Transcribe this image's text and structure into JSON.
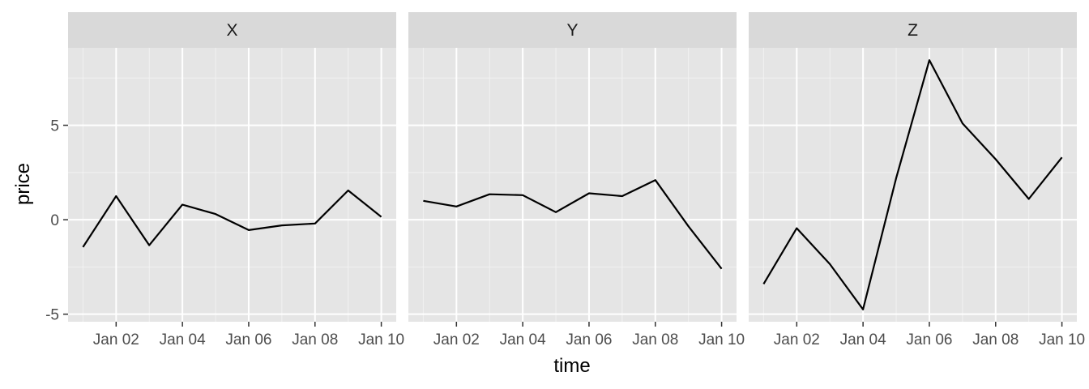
{
  "chart_data": {
    "type": "line",
    "facet_by": "series",
    "xlabel": "time",
    "ylabel": "price",
    "x": [
      "2000-01-01",
      "2000-01-02",
      "2000-01-03",
      "2000-01-04",
      "2000-01-05",
      "2000-01-06",
      "2000-01-07",
      "2000-01-08",
      "2000-01-09",
      "2000-01-10"
    ],
    "x_tick_values": [
      "2000-01-02",
      "2000-01-04",
      "2000-01-06",
      "2000-01-08",
      "2000-01-10"
    ],
    "x_tick_labels": [
      "Jan 02",
      "Jan 04",
      "Jan 06",
      "Jan 08",
      "Jan 10"
    ],
    "xlim": [
      "2000-01-01",
      "2000-01-10"
    ],
    "ylim": [
      -5.4,
      9.1
    ],
    "y_ticks": [
      -5,
      0,
      5
    ],
    "y_tick_labels": [
      "-5",
      "0",
      "5"
    ],
    "grid": true,
    "line_color": "#000000",
    "panel_background": "#e5e5e5",
    "strip_background": "#d9d9d9",
    "series": [
      {
        "name": "X",
        "values": [
          -1.45,
          1.25,
          -1.35,
          0.8,
          0.3,
          -0.55,
          -0.3,
          -0.2,
          1.55,
          0.15
        ]
      },
      {
        "name": "Y",
        "values": [
          1.0,
          0.7,
          1.35,
          1.3,
          0.4,
          1.4,
          1.25,
          2.1,
          -0.35,
          -2.6
        ]
      },
      {
        "name": "Z",
        "values": [
          -3.4,
          -0.45,
          -2.35,
          -4.75,
          2.2,
          8.45,
          5.1,
          3.2,
          1.1,
          3.3
        ]
      }
    ]
  }
}
